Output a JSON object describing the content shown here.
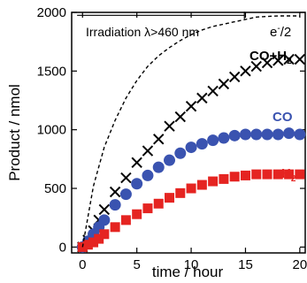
{
  "chart_data": {
    "type": "scatter",
    "xlabel": "time / hour",
    "ylabel": "Product / nmol",
    "xlim": [
      -1,
      20.5
    ],
    "ylim": [
      -50,
      2000
    ],
    "x_ticks": [
      0,
      5,
      10,
      15,
      20
    ],
    "y_ticks": [
      0,
      500,
      1000,
      1500,
      2000
    ],
    "x_tick_labels": [
      "0",
      "5",
      "10",
      "15",
      "20"
    ],
    "y_tick_labels": [
      "0",
      "500",
      "1000",
      "1500",
      "2000"
    ],
    "grid": false,
    "annotations": {
      "irradiation": "Irradiation λ>460 nm",
      "e_half": {
        "base": "e",
        "sup": "-",
        "tail": "/2"
      },
      "co_h2": {
        "base": "CO+H",
        "sub": "2"
      },
      "co": "CO",
      "h2": {
        "base": "H",
        "sub": "2"
      }
    },
    "irradiation_bar": {
      "x_start": -0.5,
      "x_end": 14.9,
      "y": 1975
    },
    "series": [
      {
        "name": "CO+H2",
        "marker": "x",
        "color": "#000000",
        "x": [
          0,
          0.5,
          1,
          1.5,
          2,
          3,
          4,
          5,
          6,
          7,
          8,
          9,
          10,
          11,
          12,
          13,
          14,
          15,
          16,
          17,
          18,
          19,
          20
        ],
        "y": [
          0,
          60,
          140,
          230,
          320,
          470,
          590,
          720,
          820,
          920,
          1030,
          1110,
          1200,
          1270,
          1330,
          1390,
          1450,
          1500,
          1540,
          1570,
          1590,
          1600,
          1600
        ]
      },
      {
        "name": "CO",
        "marker": "circle",
        "color": "#3a53b0",
        "x": [
          0,
          0.5,
          1,
          1.5,
          2,
          3,
          4,
          5,
          6,
          7,
          8,
          9,
          10,
          11,
          12,
          13,
          14,
          15,
          16,
          17,
          18,
          19,
          20
        ],
        "y": [
          0,
          50,
          110,
          170,
          230,
          360,
          450,
          540,
          610,
          680,
          740,
          800,
          850,
          880,
          910,
          930,
          950,
          960,
          960,
          960,
          960,
          970,
          960
        ]
      },
      {
        "name": "H2",
        "marker": "square",
        "color": "#e52421",
        "x": [
          0,
          0.5,
          1,
          1.5,
          2,
          3,
          4,
          5,
          6,
          7,
          8,
          9,
          10,
          11,
          12,
          13,
          14,
          15,
          16,
          17,
          18,
          19,
          20
        ],
        "y": [
          0,
          20,
          40,
          70,
          110,
          170,
          230,
          280,
          330,
          370,
          420,
          460,
          500,
          530,
          560,
          580,
          600,
          610,
          620,
          620,
          620,
          620,
          620
        ]
      },
      {
        "name": "e-/2",
        "line": "dashed",
        "color": "#000000",
        "x": [
          0,
          1,
          2,
          3,
          4,
          5,
          6,
          7,
          8,
          9,
          10,
          11,
          12,
          13,
          14,
          15,
          16,
          17,
          18,
          19,
          20
        ],
        "y": [
          0,
          520,
          850,
          1080,
          1270,
          1420,
          1540,
          1630,
          1700,
          1760,
          1810,
          1850,
          1880,
          1900,
          1920,
          1940,
          1960,
          1965,
          1970,
          1970,
          1970
        ]
      }
    ]
  }
}
